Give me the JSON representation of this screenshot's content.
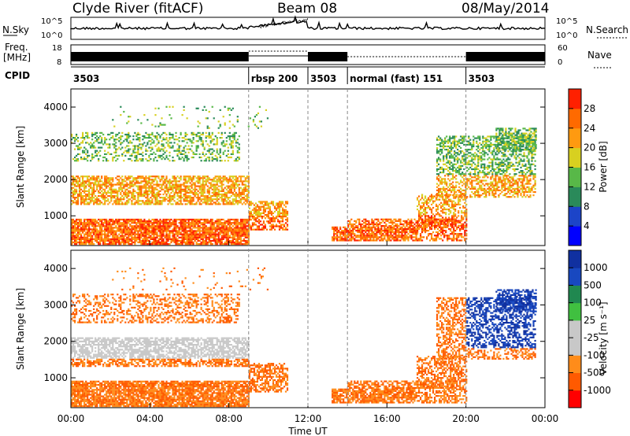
{
  "header": {
    "station": "Clyde River (fitACF)",
    "beam": "Beam 08",
    "date": "08/May/2014"
  },
  "strip": {
    "nsky_label": "N.Sky",
    "nsky_ticks": [
      "10^5",
      "10^0"
    ],
    "nsearch_label": "N.Search",
    "nsearch_ticks": [
      "10^5",
      "10^0"
    ],
    "freq_label": "Freq.",
    "freq_unit": "[MHz]",
    "freq_ticks": [
      "18",
      "8"
    ],
    "nave_label": "Nave",
    "nave_ticks": [
      "60",
      "0"
    ],
    "cpid_label": "CPID",
    "cpid_segments": [
      {
        "label": "3503",
        "start_ut": 0,
        "end_ut": 9
      },
      {
        "label": "rbsp 200",
        "start_ut": 9,
        "end_ut": 12
      },
      {
        "label": "3503",
        "start_ut": 12,
        "end_ut": 14
      },
      {
        "label": "normal (fast) 151",
        "start_ut": 14,
        "end_ut": 20
      },
      {
        "label": "3503",
        "start_ut": 20,
        "end_ut": 24
      }
    ]
  },
  "chart_data": [
    {
      "type": "heatmap",
      "title": "Power",
      "ylabel": "Slant Range [km]",
      "ylim": [
        180,
        4500
      ],
      "yticks": [
        "4000",
        "3000",
        "2000",
        "1000"
      ],
      "xlim": [
        0,
        24
      ],
      "colorbar_label": "Power [dB]",
      "colorbar_ticks": [
        "28",
        "24",
        "20",
        "16",
        "12",
        "8",
        "4"
      ],
      "colorbar_colors": [
        "#0000ff",
        "#1c44c8",
        "#2a8a5a",
        "#58b848",
        "#d8d020",
        "#ff9a10",
        "#ff6a00",
        "#ff2000"
      ]
    },
    {
      "type": "heatmap",
      "title": "Velocity",
      "ylabel": "Slant Range [km]",
      "ylim": [
        180,
        4500
      ],
      "yticks": [
        "4000",
        "3000",
        "2000",
        "1000"
      ],
      "xlim": [
        0,
        24
      ],
      "xlabel": "Time UT",
      "xticks": [
        "00:00",
        "04:00",
        "08:00",
        "12:00",
        "16:00",
        "20:00",
        "00:00"
      ],
      "colorbar_label": "Velocity [m s⁻¹]",
      "colorbar_ticks": [
        "1000",
        "500",
        "100",
        "25",
        "-25",
        "-100",
        "-500",
        "-1000"
      ],
      "colorbar_colors": [
        "#ff0000",
        "#ff5a00",
        "#ff8c1a",
        "#c8c8c8",
        "#c8c8c8",
        "#40c040",
        "#208850",
        "#1848c0",
        "#1030a0"
      ]
    }
  ]
}
